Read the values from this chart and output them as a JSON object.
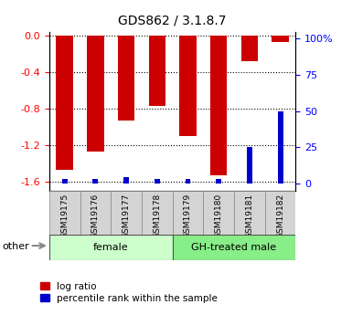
{
  "title": "GDS862 / 3.1.8.7",
  "categories": [
    "GSM19175",
    "GSM19176",
    "GSM19177",
    "GSM19178",
    "GSM19179",
    "GSM19180",
    "GSM19181",
    "GSM19182"
  ],
  "log_ratio": [
    -1.47,
    -1.27,
    -0.93,
    -0.77,
    -1.1,
    -1.53,
    -0.28,
    -0.07
  ],
  "percentile_rank": [
    3,
    3,
    4,
    3,
    3,
    3,
    25,
    50
  ],
  "groups": [
    {
      "label": "female",
      "start": 0,
      "end": 4,
      "color": "#ccffcc"
    },
    {
      "label": "GH-treated male",
      "start": 4,
      "end": 8,
      "color": "#88ee88"
    }
  ],
  "ylim_left": [
    -1.7,
    0.05
  ],
  "ylim_right": [
    -5,
    105
  ],
  "yticks_left": [
    -1.6,
    -1.2,
    -0.8,
    -0.4,
    0.0
  ],
  "yticks_right": [
    0,
    25,
    50,
    75,
    100
  ],
  "ytick_labels_right": [
    "0",
    "25",
    "50",
    "75",
    "100%"
  ],
  "bar_color": "#cc0000",
  "pct_color": "#0000cc",
  "plot_bg": "#ffffff",
  "legend_red": "log ratio",
  "legend_blue": "percentile rank within the sample",
  "other_label": "other",
  "female_color": "#ccffcc",
  "male_color": "#88ee88"
}
